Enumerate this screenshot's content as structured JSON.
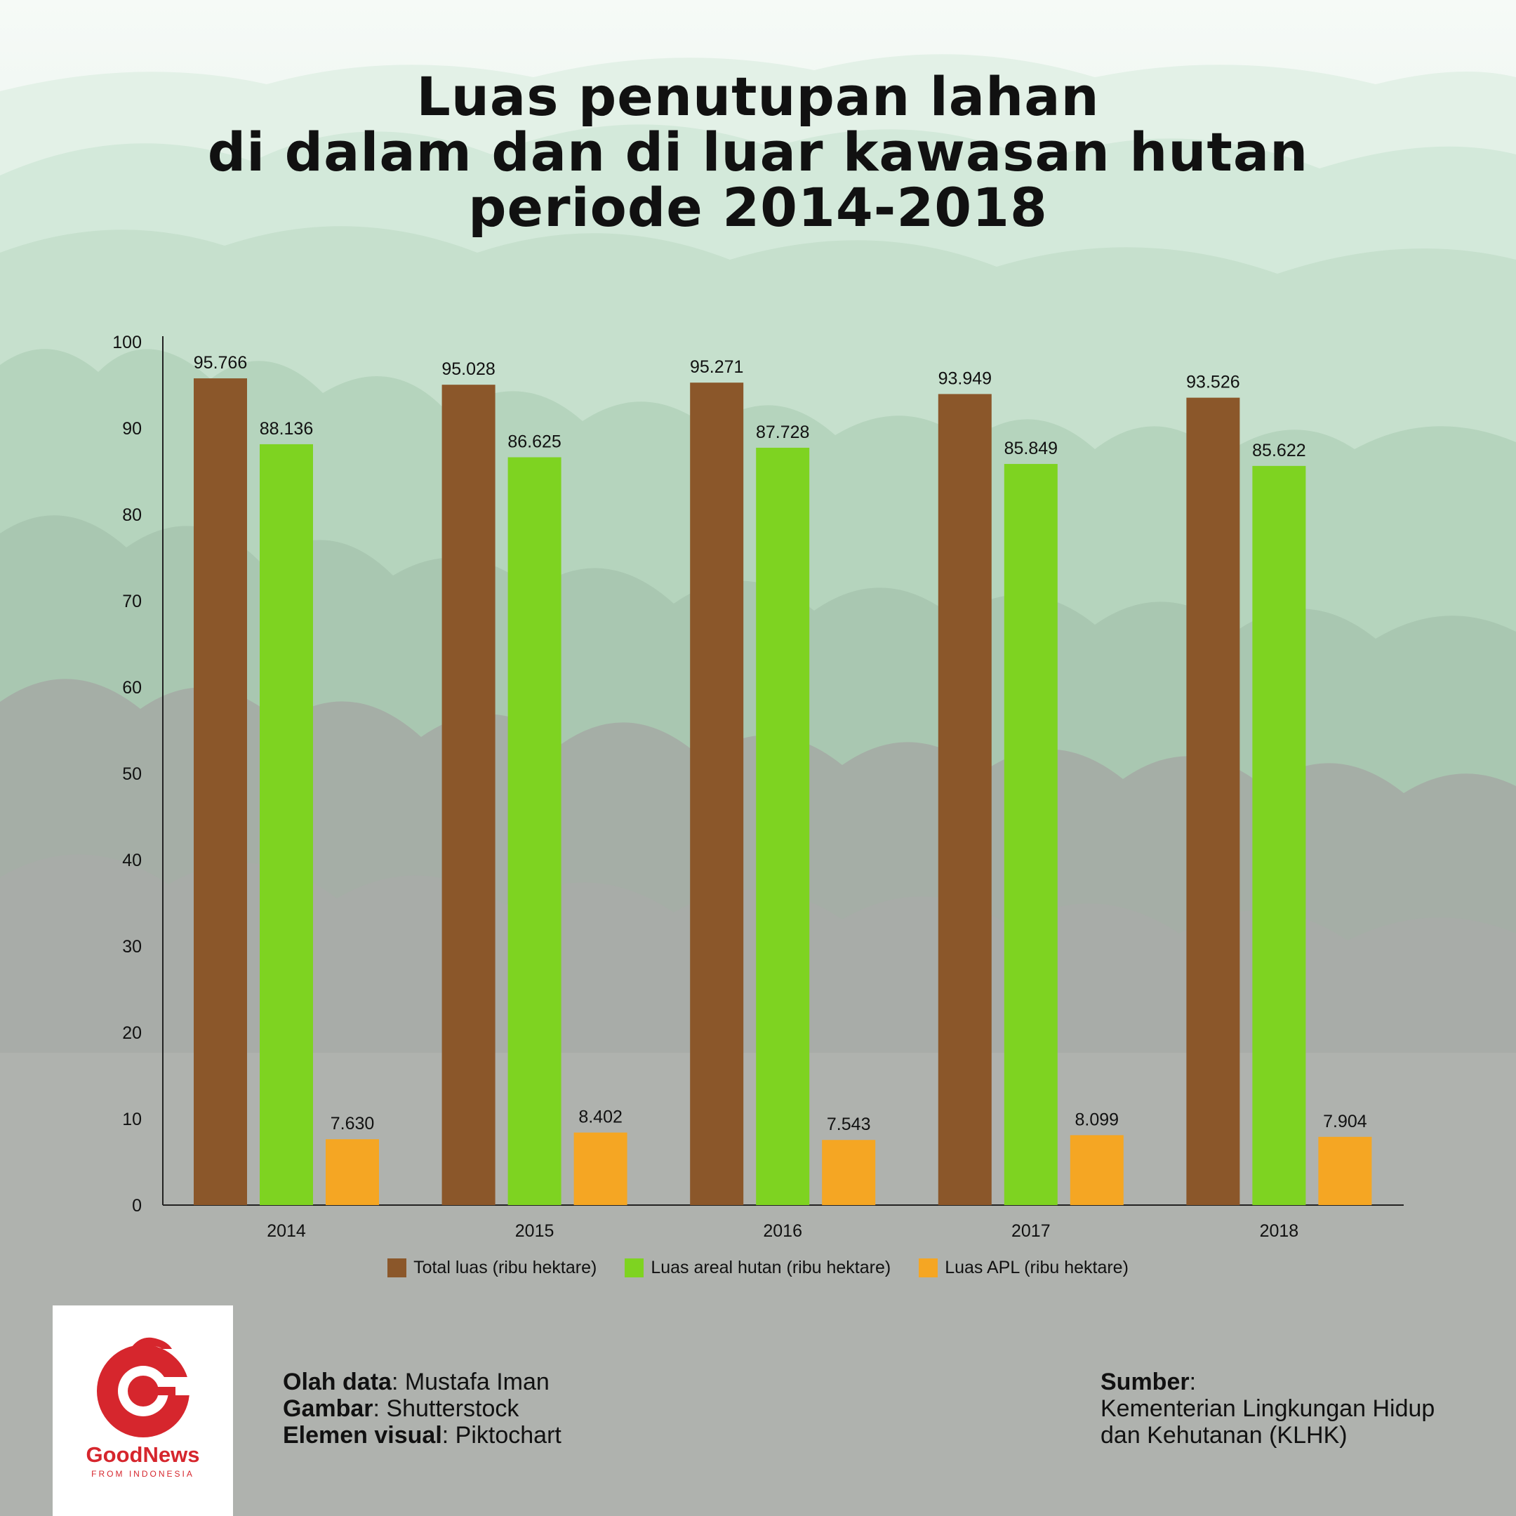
{
  "title": {
    "line1": "Luas penutupan lahan",
    "line2": "di dalam dan di luar kawasan hutan",
    "line3": "periode 2014-2018"
  },
  "chart_data": {
    "type": "bar",
    "categories": [
      "2014",
      "2015",
      "2016",
      "2017",
      "2018"
    ],
    "ylim": [
      0,
      100
    ],
    "yticks": [
      0,
      10,
      20,
      30,
      40,
      50,
      60,
      70,
      80,
      90,
      100
    ],
    "xlabel": "",
    "ylabel": "",
    "series": [
      {
        "name": "Total luas (ribu hektare)",
        "color": "#8b572a",
        "values": [
          95.766,
          95.028,
          95.271,
          93.949,
          93.526
        ],
        "labels": [
          "95.766",
          "95.028",
          "95.271",
          "93.949",
          "93.526"
        ]
      },
      {
        "name": "Luas areal hutan (ribu hektare)",
        "color": "#7ed321",
        "values": [
          88.136,
          86.625,
          87.728,
          85.849,
          85.622
        ],
        "labels": [
          "88.136",
          "86.625",
          "87.728",
          "85.849",
          "85.622"
        ]
      },
      {
        "name": "Luas APL (ribu hektare)",
        "color": "#f5a623",
        "values": [
          7.63,
          8.402,
          7.543,
          8.099,
          7.904
        ],
        "labels": [
          "7.630",
          "8.402",
          "7.543",
          "8.099",
          "7.904"
        ]
      }
    ]
  },
  "credits": {
    "data_label": "Olah data",
    "data_value": ": Mustafa Iman",
    "image_label": "Gambar",
    "image_value": ": Shutterstock",
    "visual_label": "Elemen visual",
    "visual_value": ": Piktochart"
  },
  "source": {
    "label": "Sumber",
    "colon": ":",
    "line1": "Kementerian Lingkungan Hidup",
    "line2": "dan Kehutanan (KLHK)"
  },
  "logo": {
    "name": "GoodNews",
    "sub": "FROM INDONESIA",
    "color": "#d6262d"
  }
}
